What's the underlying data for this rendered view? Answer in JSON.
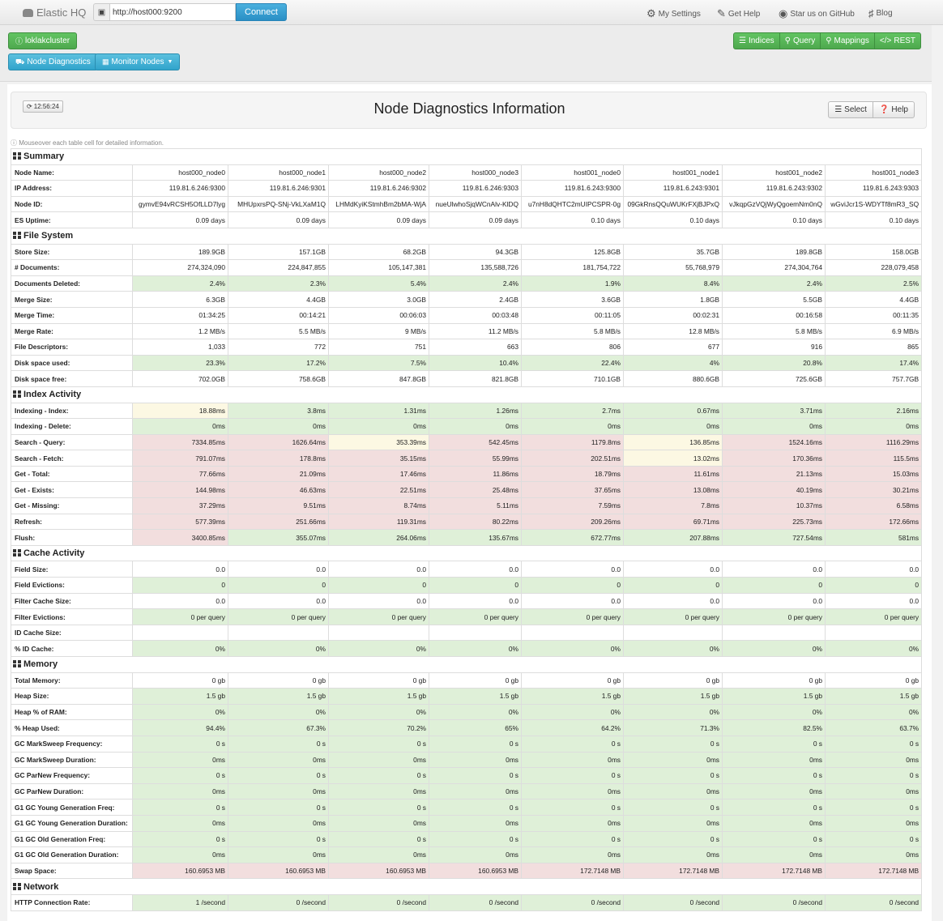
{
  "navbar": {
    "brand": "Elastic HQ",
    "url_value": "http://host000:9200",
    "connect_label": "Connect",
    "my_settings": "My Settings",
    "get_help": "Get Help",
    "github": "Star us on GitHub",
    "blog": "Blog"
  },
  "toolbar": {
    "cluster_label": "loklakcluster",
    "node_diag_label": "Node Diagnostics",
    "monitor_label": "Monitor Nodes",
    "indices_label": "Indices",
    "query_label": "Query",
    "mappings_label": "Mappings",
    "rest_label": "REST"
  },
  "panel": {
    "refresh_time": "12:56:24",
    "title": "Node Diagnostics Information",
    "select_label": "Select",
    "help_label": "Help",
    "hint": "Mouseover each table cell for detailed information."
  },
  "sections": [
    {
      "title": "Summary",
      "rows": [
        {
          "label": "Node Name:",
          "values": [
            "host000_node0",
            "host000_node1",
            "host000_node2",
            "host000_node3",
            "host001_node0",
            "host001_node1",
            "host001_node2",
            "host001_node3"
          ]
        },
        {
          "label": "IP Address:",
          "values": [
            "119.81.6.246:9300",
            "119.81.6.246:9301",
            "119.81.6.246:9302",
            "119.81.6.246:9303",
            "119.81.6.243:9300",
            "119.81.6.243:9301",
            "119.81.6.243:9302",
            "119.81.6.243:9303"
          ]
        },
        {
          "label": "Node ID:",
          "values": [
            "gymvE94vRCSH5OfLLD7lyg",
            "MHUpxrsPQ-SNj-VkLXaM1Q",
            "LHMdKyiKStmhBm2bMA-WjA",
            "nueUlwhoSjqWCnAlv-KlDQ",
            "u7nH8dQHTC2mUIPCSPR-0g",
            "09GkRnsQQuWUKrFXjBJPxQ",
            "vJkqpGzVQjWyQgoemNm0nQ",
            "wGviJcr1S-WDYTf8mR3_SQ"
          ]
        },
        {
          "label": "ES Uptime:",
          "values": [
            "0.09 days",
            "0.09 days",
            "0.09 days",
            "0.09 days",
            "0.10 days",
            "0.10 days",
            "0.10 days",
            "0.10 days"
          ]
        }
      ]
    },
    {
      "title": "File System",
      "rows": [
        {
          "label": "Store Size:",
          "values": [
            "189.9GB",
            "157.1GB",
            "68.2GB",
            "94.3GB",
            "125.8GB",
            "35.7GB",
            "189.8GB",
            "158.0GB"
          ]
        },
        {
          "label": "# Documents:",
          "values": [
            "274,324,090",
            "224,847,855",
            "105,147,381",
            "135,588,726",
            "181,754,722",
            "55,768,979",
            "274,304,764",
            "228,079,458"
          ]
        },
        {
          "label": "Documents Deleted:",
          "color": "g",
          "values": [
            "2.4%",
            "2.3%",
            "5.4%",
            "2.4%",
            "1.9%",
            "8.4%",
            "2.4%",
            "2.5%"
          ]
        },
        {
          "label": "Merge Size:",
          "values": [
            "6.3GB",
            "4.4GB",
            "3.0GB",
            "2.4GB",
            "3.6GB",
            "1.8GB",
            "5.5GB",
            "4.4GB"
          ]
        },
        {
          "label": "Merge Time:",
          "values": [
            "01:34:25",
            "00:14:21",
            "00:06:03",
            "00:03:48",
            "00:11:05",
            "00:02:31",
            "00:16:58",
            "00:11:35"
          ]
        },
        {
          "label": "Merge Rate:",
          "values": [
            "1.2 MB/s",
            "5.5 MB/s",
            "9 MB/s",
            "11.2 MB/s",
            "5.8 MB/s",
            "12.8 MB/s",
            "5.8 MB/s",
            "6.9 MB/s"
          ]
        },
        {
          "label": "File Descriptors:",
          "values": [
            "1,033",
            "772",
            "751",
            "663",
            "806",
            "677",
            "916",
            "865"
          ]
        },
        {
          "label": "Disk space used:",
          "color": "g",
          "values": [
            "23.3%",
            "17.2%",
            "7.5%",
            "10.4%",
            "22.4%",
            "4%",
            "20.8%",
            "17.4%"
          ]
        },
        {
          "label": "Disk space free:",
          "values": [
            "702.0GB",
            "758.6GB",
            "847.8GB",
            "821.8GB",
            "710.1GB",
            "880.6GB",
            "725.6GB",
            "757.7GB"
          ]
        }
      ]
    },
    {
      "title": "Index Activity",
      "rows": [
        {
          "label": "Indexing - Index:",
          "colors": [
            "y",
            "g",
            "g",
            "g",
            "g",
            "g",
            "g",
            "g"
          ],
          "values": [
            "18.88ms",
            "3.8ms",
            "1.31ms",
            "1.26ms",
            "2.7ms",
            "0.67ms",
            "3.71ms",
            "2.16ms"
          ]
        },
        {
          "label": "Indexing - Delete:",
          "color": "g",
          "values": [
            "0ms",
            "0ms",
            "0ms",
            "0ms",
            "0ms",
            "0ms",
            "0ms",
            "0ms"
          ]
        },
        {
          "label": "Search - Query:",
          "colors": [
            "r",
            "r",
            "y",
            "r",
            "r",
            "y",
            "r",
            "r"
          ],
          "values": [
            "7334.85ms",
            "1626.64ms",
            "353.39ms",
            "542.45ms",
            "1179.8ms",
            "136.85ms",
            "1524.16ms",
            "1116.29ms"
          ]
        },
        {
          "label": "Search - Fetch:",
          "colors": [
            "r",
            "r",
            "r",
            "r",
            "r",
            "y",
            "r",
            "r"
          ],
          "values": [
            "791.07ms",
            "178.8ms",
            "35.15ms",
            "55.99ms",
            "202.51ms",
            "13.02ms",
            "170.36ms",
            "115.5ms"
          ]
        },
        {
          "label": "Get - Total:",
          "color": "r",
          "values": [
            "77.66ms",
            "21.09ms",
            "17.46ms",
            "11.86ms",
            "18.79ms",
            "11.61ms",
            "21.13ms",
            "15.03ms"
          ]
        },
        {
          "label": "Get - Exists:",
          "color": "r",
          "values": [
            "144.98ms",
            "46.63ms",
            "22.51ms",
            "25.48ms",
            "37.65ms",
            "13.08ms",
            "40.19ms",
            "30.21ms"
          ]
        },
        {
          "label": "Get - Missing:",
          "color": "r",
          "values": [
            "37.29ms",
            "9.51ms",
            "8.74ms",
            "5.11ms",
            "7.59ms",
            "7.8ms",
            "10.37ms",
            "6.58ms"
          ]
        },
        {
          "label": "Refresh:",
          "color": "r",
          "values": [
            "577.39ms",
            "251.66ms",
            "119.31ms",
            "80.22ms",
            "209.26ms",
            "69.71ms",
            "225.73ms",
            "172.66ms"
          ]
        },
        {
          "label": "Flush:",
          "colors": [
            "r",
            "g",
            "g",
            "g",
            "g",
            "g",
            "g",
            "g"
          ],
          "values": [
            "3400.85ms",
            "355.07ms",
            "264.06ms",
            "135.67ms",
            "672.77ms",
            "207.88ms",
            "727.54ms",
            "581ms"
          ]
        }
      ]
    },
    {
      "title": "Cache Activity",
      "rows": [
        {
          "label": "Field Size:",
          "values": [
            "0.0",
            "0.0",
            "0.0",
            "0.0",
            "0.0",
            "0.0",
            "0.0",
            "0.0"
          ]
        },
        {
          "label": "Field Evictions:",
          "color": "g",
          "values": [
            "0",
            "0",
            "0",
            "0",
            "0",
            "0",
            "0",
            "0"
          ]
        },
        {
          "label": "Filter Cache Size:",
          "values": [
            "0.0",
            "0.0",
            "0.0",
            "0.0",
            "0.0",
            "0.0",
            "0.0",
            "0.0"
          ]
        },
        {
          "label": "Filter Evictions:",
          "color": "g",
          "values": [
            "0 per query",
            "0 per query",
            "0 per query",
            "0 per query",
            "0 per query",
            "0 per query",
            "0 per query",
            "0 per query"
          ]
        },
        {
          "label": "ID Cache Size:",
          "values": [
            "",
            "",
            "",
            "",
            "",
            "",
            "",
            ""
          ]
        },
        {
          "label": "% ID Cache:",
          "color": "g",
          "values": [
            "0%",
            "0%",
            "0%",
            "0%",
            "0%",
            "0%",
            "0%",
            "0%"
          ]
        }
      ]
    },
    {
      "title": "Memory",
      "rows": [
        {
          "label": "Total Memory:",
          "values": [
            "0 gb",
            "0 gb",
            "0 gb",
            "0 gb",
            "0 gb",
            "0 gb",
            "0 gb",
            "0 gb"
          ]
        },
        {
          "label": "Heap Size:",
          "color": "g",
          "values": [
            "1.5 gb",
            "1.5 gb",
            "1.5 gb",
            "1.5 gb",
            "1.5 gb",
            "1.5 gb",
            "1.5 gb",
            "1.5 gb"
          ]
        },
        {
          "label": "Heap % of RAM:",
          "color": "g",
          "values": [
            "0%",
            "0%",
            "0%",
            "0%",
            "0%",
            "0%",
            "0%",
            "0%"
          ]
        },
        {
          "label": "% Heap Used:",
          "color": "g",
          "values": [
            "94.4%",
            "67.3%",
            "70.2%",
            "65%",
            "64.2%",
            "71.3%",
            "82.5%",
            "63.7%"
          ]
        },
        {
          "label": "GC MarkSweep Frequency:",
          "color": "g",
          "values": [
            "0 s",
            "0 s",
            "0 s",
            "0 s",
            "0 s",
            "0 s",
            "0 s",
            "0 s"
          ]
        },
        {
          "label": "GC MarkSweep Duration:",
          "color": "g",
          "values": [
            "0ms",
            "0ms",
            "0ms",
            "0ms",
            "0ms",
            "0ms",
            "0ms",
            "0ms"
          ]
        },
        {
          "label": "GC ParNew Frequency:",
          "color": "g",
          "values": [
            "0 s",
            "0 s",
            "0 s",
            "0 s",
            "0 s",
            "0 s",
            "0 s",
            "0 s"
          ]
        },
        {
          "label": "GC ParNew Duration:",
          "color": "g",
          "values": [
            "0ms",
            "0ms",
            "0ms",
            "0ms",
            "0ms",
            "0ms",
            "0ms",
            "0ms"
          ]
        },
        {
          "label": "G1 GC Young Generation Freq:",
          "color": "g",
          "values": [
            "0 s",
            "0 s",
            "0 s",
            "0 s",
            "0 s",
            "0 s",
            "0 s",
            "0 s"
          ]
        },
        {
          "label": "G1 GC Young Generation Duration:",
          "color": "g",
          "values": [
            "0ms",
            "0ms",
            "0ms",
            "0ms",
            "0ms",
            "0ms",
            "0ms",
            "0ms"
          ]
        },
        {
          "label": "G1 GC Old Generation Freq:",
          "color": "g",
          "values": [
            "0 s",
            "0 s",
            "0 s",
            "0 s",
            "0 s",
            "0 s",
            "0 s",
            "0 s"
          ]
        },
        {
          "label": "G1 GC Old Generation Duration:",
          "color": "g",
          "values": [
            "0ms",
            "0ms",
            "0ms",
            "0ms",
            "0ms",
            "0ms",
            "0ms",
            "0ms"
          ]
        },
        {
          "label": "Swap Space:",
          "color": "r",
          "values": [
            "160.6953 MB",
            "160.6953 MB",
            "160.6953 MB",
            "160.6953 MB",
            "172.7148 MB",
            "172.7148 MB",
            "172.7148 MB",
            "172.7148 MB"
          ]
        }
      ]
    },
    {
      "title": "Network",
      "rows": [
        {
          "label": "HTTP Connection Rate:",
          "color": "g",
          "values": [
            "1 /second",
            "0 /second",
            "0 /second",
            "0 /second",
            "0 /second",
            "0 /second",
            "0 /second",
            "0 /second"
          ]
        }
      ]
    }
  ]
}
